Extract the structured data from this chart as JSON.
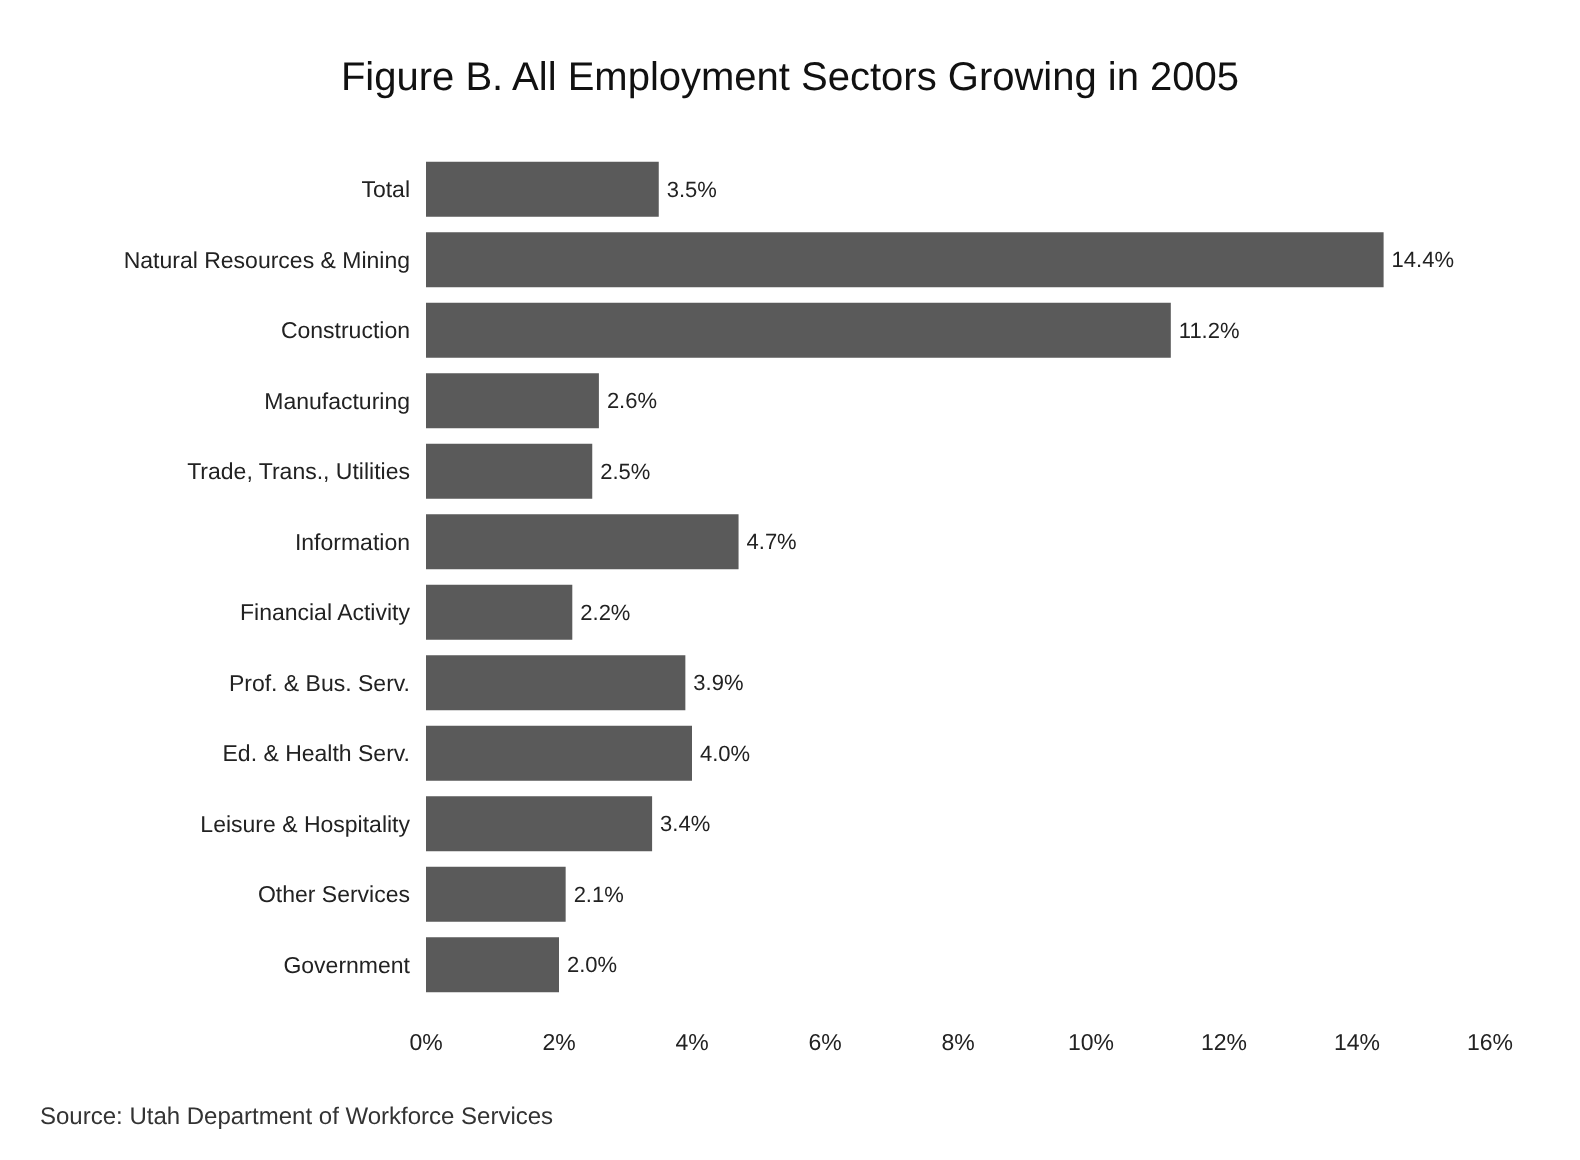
{
  "chart_data": {
    "type": "bar",
    "orientation": "horizontal",
    "title": "Figure B.  All Employment Sectors Growing in 2005",
    "categories": [
      "Total",
      "Natural Resources & Mining",
      "Construction",
      "Manufacturing",
      "Trade, Trans., Utilities",
      "Information",
      "Financial Activity",
      "Prof. & Bus. Serv.",
      "Ed. & Health Serv.",
      "Leisure & Hospitality",
      "Other Services",
      "Government"
    ],
    "values": [
      3.5,
      14.4,
      11.2,
      2.6,
      2.5,
      4.7,
      2.2,
      3.9,
      4.0,
      3.4,
      2.1,
      2.0
    ],
    "value_labels": [
      "3.5%",
      "14.4%",
      "11.2%",
      "2.6%",
      "2.5%",
      "4.7%",
      "2.2%",
      "3.9%",
      "4.0%",
      "3.4%",
      "2.1%",
      "2.0%"
    ],
    "color": "#5a5a5a",
    "xlim": [
      0,
      16
    ],
    "xticks": [
      {
        "value": 0,
        "label": "0%"
      },
      {
        "value": 2,
        "label": "2%"
      },
      {
        "value": 4,
        "label": "4%"
      },
      {
        "value": 6,
        "label": "6%"
      },
      {
        "value": 8,
        "label": "8%"
      },
      {
        "value": 10,
        "label": "10%"
      },
      {
        "value": 12,
        "label": "12%"
      },
      {
        "value": 14,
        "label": "14%"
      },
      {
        "value": 16,
        "label": "16%"
      }
    ],
    "grid": false,
    "annotations": [
      "Source: Utah Department of Workforce Services"
    ]
  }
}
